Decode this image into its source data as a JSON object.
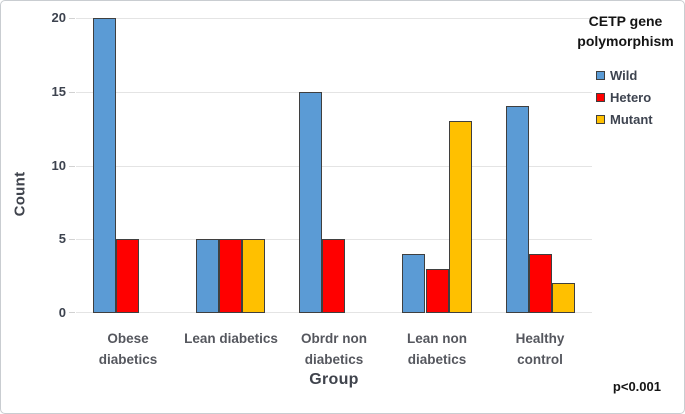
{
  "figure": {
    "legend_title_line1": "CETP gene",
    "legend_title_line2": "polymorphism",
    "annotation": "p<0.001"
  },
  "chart_data": {
    "type": "bar",
    "title": "",
    "xlabel": "Group",
    "ylabel": "Count",
    "ylim": [
      0,
      20
    ],
    "yticks": [
      0,
      5,
      10,
      15,
      20
    ],
    "grid": true,
    "legend_title": "CETP gene polymorphism",
    "legend_position": "top-right",
    "annotation": "p<0.001",
    "categories": [
      "Obese diabetics",
      "Lean diabetics",
      "Obrdr non diabetics",
      "Lean non diabetics",
      "Healthy control"
    ],
    "category_label_lines": [
      [
        "Obese",
        "diabetics"
      ],
      [
        "Lean diabetics"
      ],
      [
        "Obrdr non",
        "diabetics"
      ],
      [
        "Lean non",
        "diabetics"
      ],
      [
        "Healthy",
        "control"
      ]
    ],
    "series": [
      {
        "name": "Wild",
        "color": "#5B9BD5",
        "values": [
          20,
          5,
          15,
          4,
          14
        ]
      },
      {
        "name": "Hetero",
        "color": "#FF0000",
        "values": [
          5,
          5,
          5,
          3,
          4
        ]
      },
      {
        "name": "Mutant",
        "color": "#FFC000",
        "values": [
          0,
          5,
          0,
          13,
          2
        ]
      }
    ],
    "colors": {
      "bar_border": "#3f3f3f",
      "gridline": "#e4e4e4",
      "axis_text": "#3d434f",
      "title_text": "#141414"
    }
  }
}
